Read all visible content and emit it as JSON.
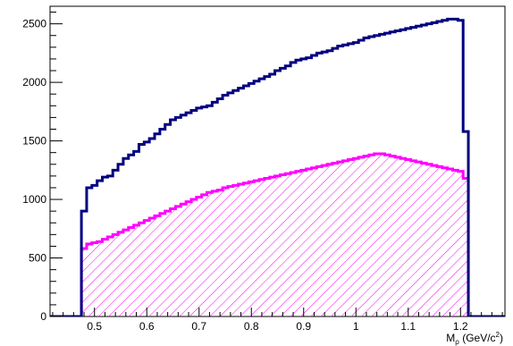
{
  "chart_data": {
    "type": "histogram",
    "title": "",
    "xlabel": "M_ρ (GeV/c²)",
    "ylabel": "",
    "xlim": [
      0.415,
      1.285
    ],
    "ylim": [
      0,
      2650
    ],
    "bin_width": 0.01,
    "x_start": 0.475,
    "x_ticks": [
      0.5,
      0.6,
      0.7,
      0.8,
      0.9,
      1.0,
      1.1,
      1.2
    ],
    "x_tick_labels": [
      "0.5",
      "0.6",
      "0.7",
      "0.8",
      "0.9",
      "1",
      "1.1",
      "1.2"
    ],
    "y_ticks": [
      0,
      500,
      1000,
      1500,
      2000,
      2500
    ],
    "y_tick_labels": [
      "0",
      "500",
      "1000",
      "1500",
      "2000",
      "2500"
    ],
    "series": [
      {
        "color": "#000080",
        "fill": "none",
        "values": [
          900,
          1100,
          1120,
          1160,
          1190,
          1200,
          1250,
          1300,
          1350,
          1380,
          1410,
          1470,
          1490,
          1520,
          1560,
          1600,
          1640,
          1680,
          1700,
          1720,
          1740,
          1760,
          1780,
          1790,
          1800,
          1830,
          1860,
          1890,
          1910,
          1930,
          1950,
          1970,
          1990,
          2010,
          2030,
          2050,
          2070,
          2100,
          2120,
          2140,
          2170,
          2190,
          2200,
          2210,
          2230,
          2250,
          2260,
          2270,
          2290,
          2310,
          2320,
          2330,
          2340,
          2360,
          2380,
          2390,
          2400,
          2410,
          2420,
          2430,
          2440,
          2450,
          2460,
          2470,
          2480,
          2490,
          2500,
          2510,
          2520,
          2530,
          2540,
          2540,
          2530,
          1580
        ]
      },
      {
        "color": "#ff00ff",
        "fill": "hatched",
        "values": [
          580,
          620,
          630,
          640,
          660,
          680,
          700,
          720,
          740,
          760,
          780,
          800,
          820,
          840,
          860,
          880,
          900,
          920,
          940,
          960,
          980,
          1000,
          1020,
          1040,
          1060,
          1070,
          1080,
          1100,
          1110,
          1120,
          1130,
          1140,
          1150,
          1160,
          1170,
          1180,
          1190,
          1200,
          1210,
          1220,
          1230,
          1240,
          1250,
          1260,
          1270,
          1280,
          1290,
          1300,
          1310,
          1320,
          1330,
          1340,
          1350,
          1360,
          1370,
          1380,
          1390,
          1390,
          1380,
          1370,
          1360,
          1350,
          1340,
          1330,
          1320,
          1310,
          1300,
          1290,
          1280,
          1270,
          1260,
          1250,
          1240,
          1180
        ]
      }
    ]
  }
}
